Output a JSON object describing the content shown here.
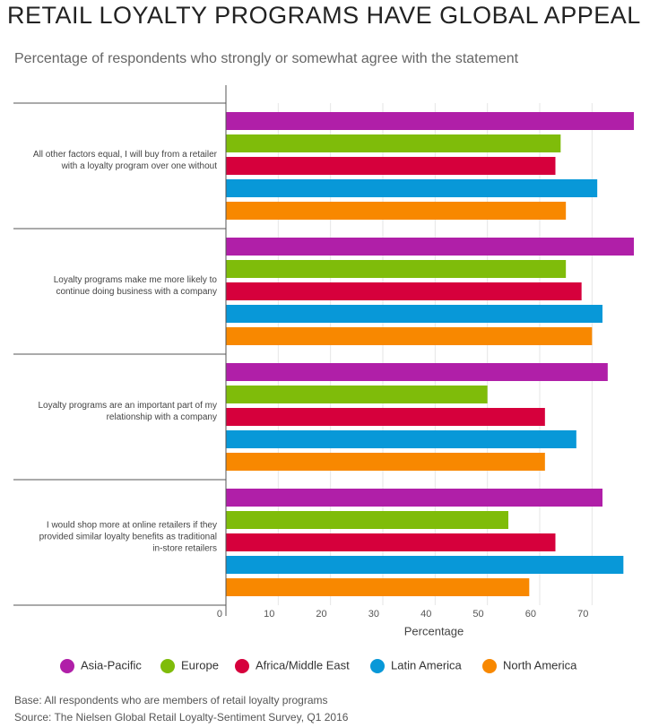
{
  "chart_data": {
    "type": "hbar-grouped",
    "title": "RETAIL LOYALTY PROGRAMS HAVE GLOBAL APPEAL",
    "subtitle": "Percentage of respondents who strongly or somewhat agree with the statement",
    "x_label": "Percentage",
    "categories": [
      "All other factors equal, I will buy from a retailer\nwith a loyalty program over one without",
      "Loyalty programs make me more likely to\ncontinue doing business with a company",
      "Loyalty programs are an important part of my\nrelationship with a company",
      "I would shop more at online retailers if they\nprovided similar loyalty benefits as traditional\nin-store retailers"
    ],
    "series": [
      {
        "name": "Asia-Pacific",
        "color": "#b01fa8",
        "values": [
          78,
          78,
          73,
          72
        ]
      },
      {
        "name": "Europe",
        "color": "#7fbc0a",
        "values": [
          64,
          65,
          50,
          54
        ]
      },
      {
        "name": "Africa/Middle East",
        "color": "#d6003c",
        "values": [
          63,
          68,
          61,
          63
        ]
      },
      {
        "name": "Latin America",
        "color": "#0898d8",
        "values": [
          71,
          72,
          67,
          76
        ]
      },
      {
        "name": "North America",
        "color": "#f88800",
        "values": [
          65,
          70,
          61,
          58
        ]
      }
    ],
    "xlim": [
      0,
      78
    ],
    "xticks": [
      0,
      10,
      20,
      30,
      40,
      50,
      60,
      70
    ],
    "grid": true,
    "notes": [
      "Base: All respondents who are members of retail loyalty programs",
      "Source: The Nielsen Global Retail Loyalty-Sentiment Survey, Q1 2016"
    ]
  }
}
